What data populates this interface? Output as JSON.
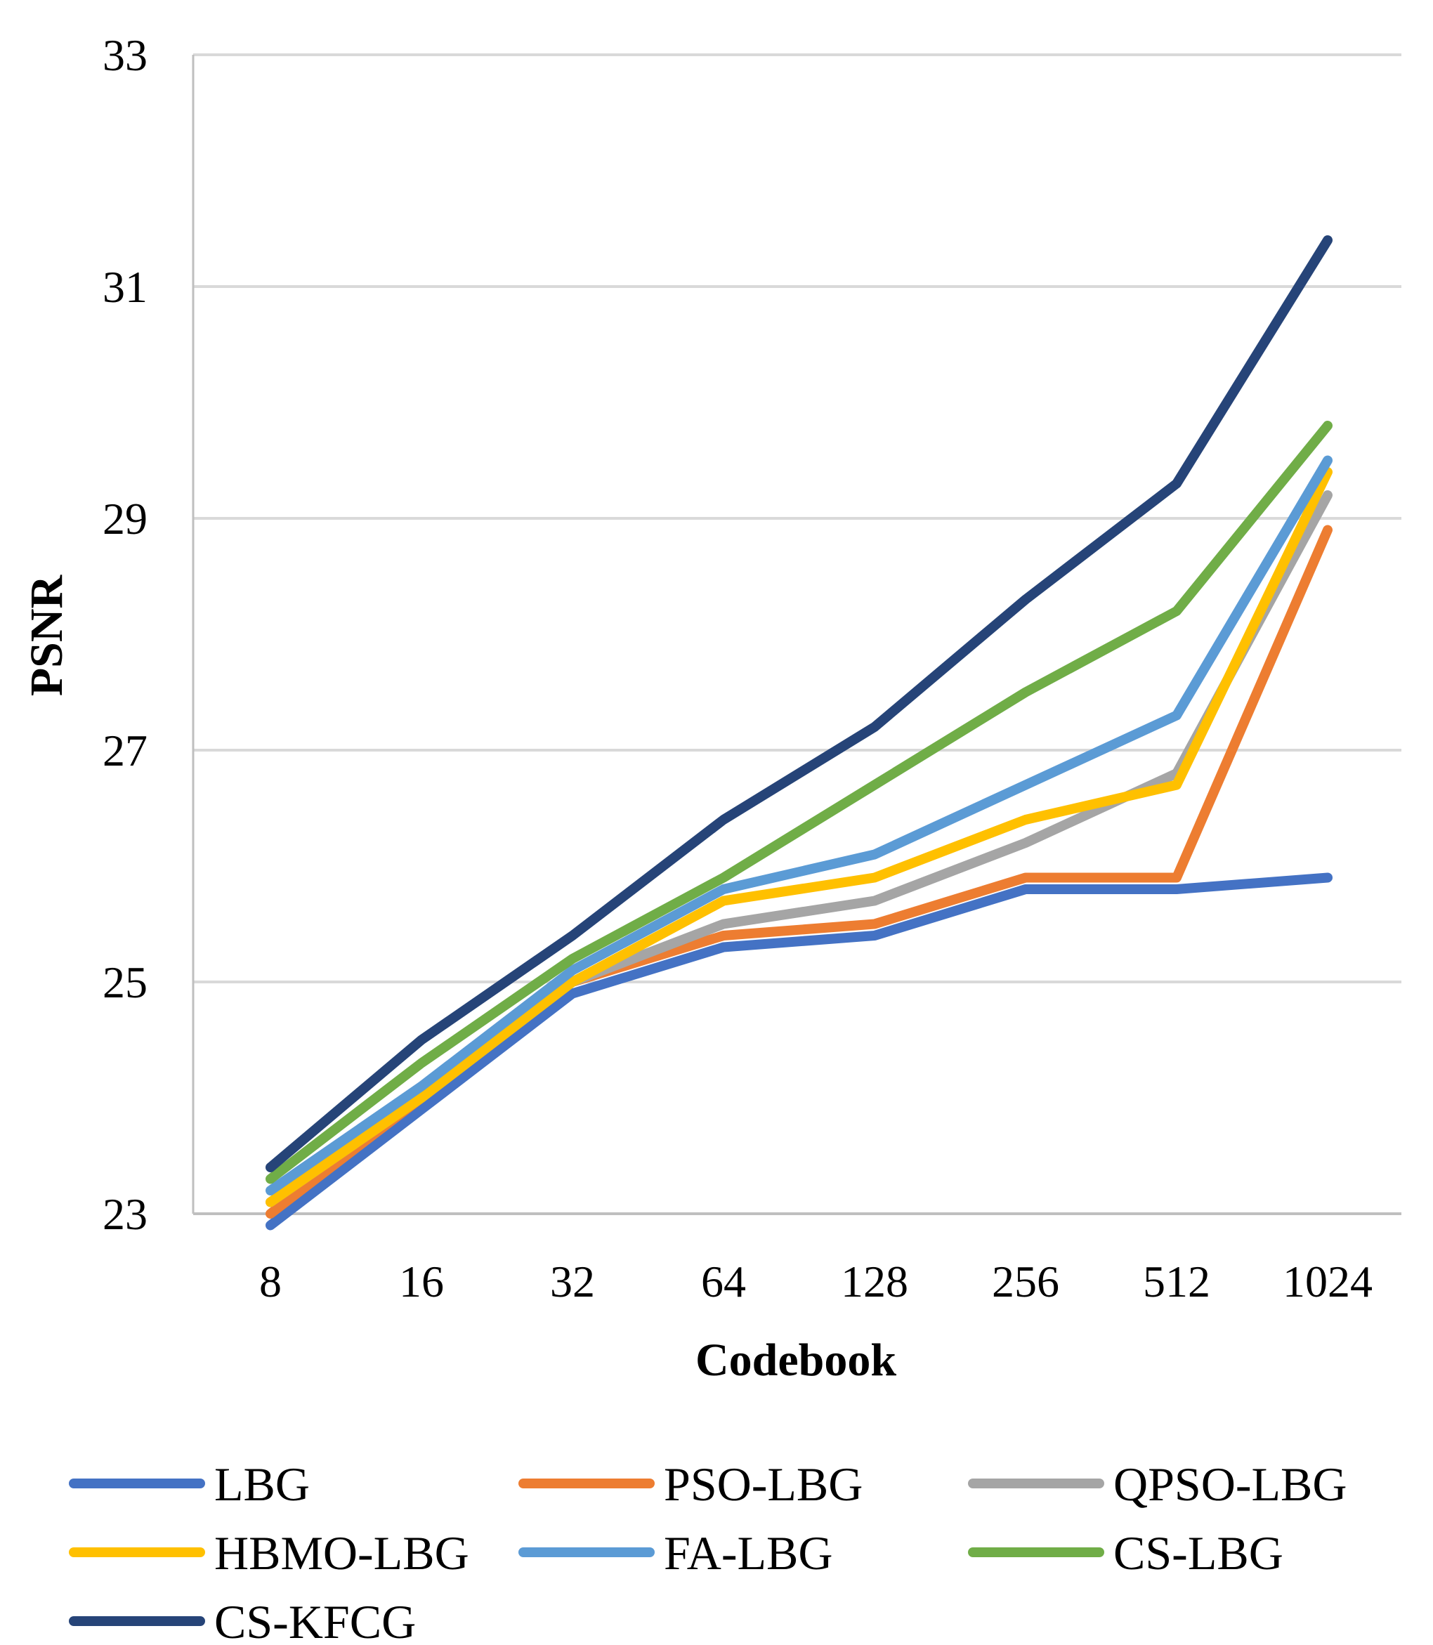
{
  "chart_data": {
    "type": "line",
    "title": "",
    "xlabel": "Codebook",
    "ylabel": "PSNR",
    "categories": [
      "8",
      "16",
      "32",
      "64",
      "128",
      "256",
      "512",
      "1024"
    ],
    "ylim": [
      23,
      33
    ],
    "yticks": [
      "23",
      "25",
      "27",
      "29",
      "31",
      "33"
    ],
    "grid": true,
    "legend_position": "bottom",
    "series": [
      {
        "name": "LBG",
        "color": "#4472C4",
        "values": [
          22.9,
          23.9,
          24.9,
          25.3,
          25.4,
          25.8,
          25.8,
          25.9
        ]
      },
      {
        "name": "PSO-LBG",
        "color": "#ED7D31",
        "values": [
          23.0,
          24.0,
          25.0,
          25.4,
          25.5,
          25.9,
          25.9,
          28.9
        ]
      },
      {
        "name": "QPSO-LBG",
        "color": "#A5A5A5",
        "values": [
          23.1,
          24.0,
          25.0,
          25.5,
          25.7,
          26.2,
          26.8,
          29.2
        ]
      },
      {
        "name": "HBMO-LBG",
        "color": "#FFC000",
        "values": [
          23.1,
          24.0,
          25.0,
          25.7,
          25.9,
          26.4,
          26.7,
          29.4
        ]
      },
      {
        "name": "FA-LBG",
        "color": "#5B9BD5",
        "values": [
          23.2,
          24.1,
          25.1,
          25.8,
          26.1,
          26.7,
          27.3,
          29.5
        ]
      },
      {
        "name": "CS-LBG",
        "color": "#70AD47",
        "values": [
          23.3,
          24.3,
          25.2,
          25.9,
          26.7,
          27.5,
          28.2,
          29.8
        ]
      },
      {
        "name": "CS-KFCG",
        "color": "#264478",
        "values": [
          23.4,
          24.5,
          25.4,
          26.4,
          27.2,
          28.3,
          29.3,
          31.4
        ]
      }
    ]
  }
}
